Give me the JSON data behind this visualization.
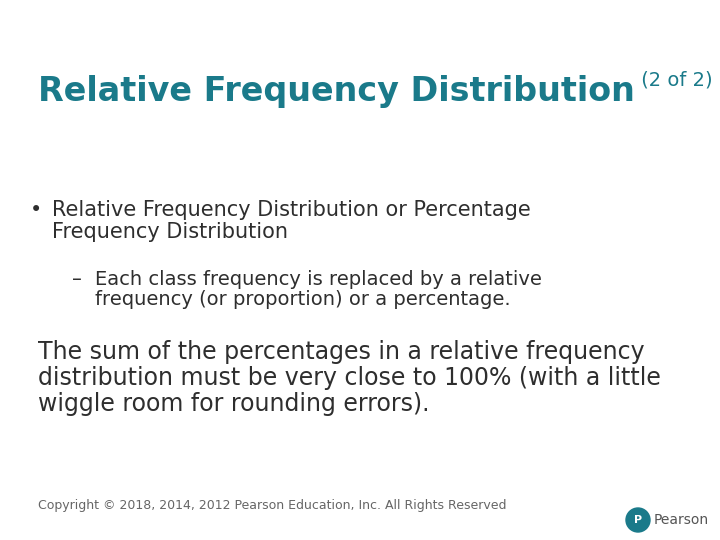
{
  "background_color": "#ffffff",
  "title_main": "Relative Frequency Distribution",
  "title_suffix": " (2 of 2)",
  "title_color": "#1a7a8a",
  "title_main_fontsize": 24,
  "title_suffix_fontsize": 14,
  "bullet_text_line1": "Relative Frequency Distribution or Percentage",
  "bullet_text_line2": "Frequency Distribution",
  "sub_bullet_text_line1": "Each class frequency is replaced by a relative",
  "sub_bullet_text_line2": "frequency (or proportion) or a percentage.",
  "body_line1": "The sum of the percentages in a relative frequency",
  "body_line2": "distribution must be very close to 100% (with a little",
  "body_line3": "wiggle room for rounding errors).",
  "footer_text": "Copyright © 2018, 2014, 2012 Pearson Education, Inc. All Rights Reserved",
  "text_color": "#2e2e2e",
  "footer_color": "#666666",
  "bullet_fontsize": 15,
  "sub_bullet_fontsize": 14,
  "body_fontsize": 17,
  "footer_fontsize": 9,
  "pearson_circle_color": "#1a7a8a",
  "pearson_text_color": "#555555"
}
